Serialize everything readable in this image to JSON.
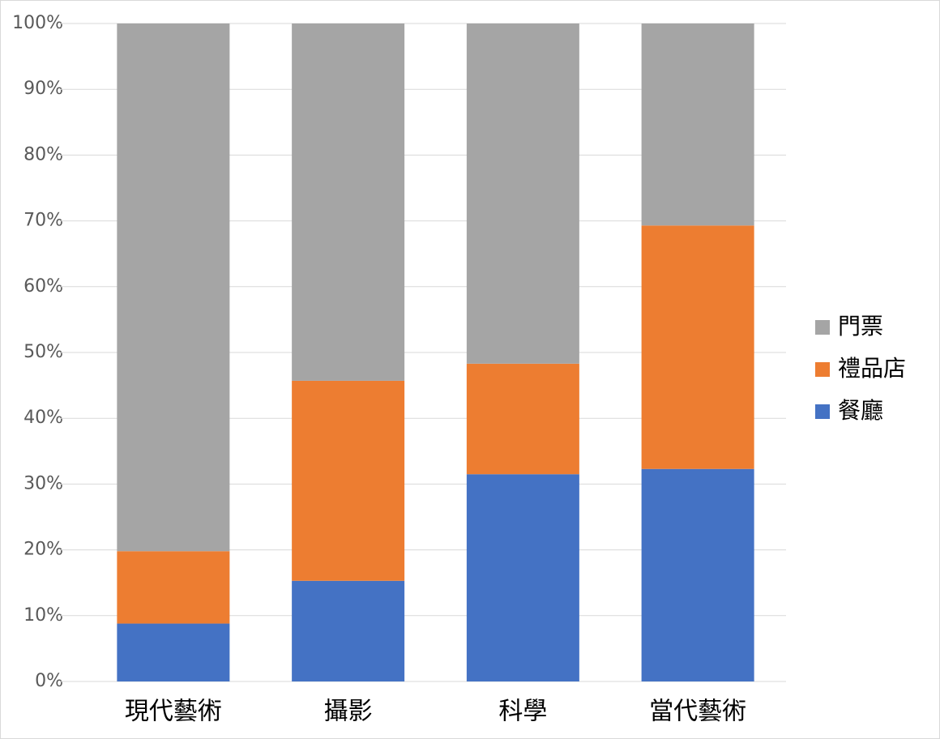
{
  "chart_data": {
    "type": "stacked_bar_100",
    "categories": [
      "現代藝術",
      "攝影",
      "科學",
      "當代藝術"
    ],
    "series": [
      {
        "name": "餐廳",
        "color": "#4472c4",
        "values": [
          8.8,
          15.3,
          31.5,
          32.3
        ]
      },
      {
        "name": "禮品店",
        "color": "#ed7d31",
        "values": [
          11.0,
          30.4,
          16.8,
          37.0
        ]
      },
      {
        "name": "門票",
        "color": "#a5a5a5",
        "values": [
          80.2,
          54.3,
          51.7,
          30.7
        ]
      }
    ],
    "ylim": [
      0,
      100
    ],
    "yticks": [
      {
        "value": 0,
        "label": "0%"
      },
      {
        "value": 10,
        "label": "10%"
      },
      {
        "value": 20,
        "label": "20%"
      },
      {
        "value": 30,
        "label": "30%"
      },
      {
        "value": 40,
        "label": "40%"
      },
      {
        "value": 50,
        "label": "50%"
      },
      {
        "value": 60,
        "label": "60%"
      },
      {
        "value": 70,
        "label": "70%"
      },
      {
        "value": 80,
        "label": "80%"
      },
      {
        "value": 90,
        "label": "90%"
      },
      {
        "value": 100,
        "label": "100%"
      }
    ],
    "grid": true,
    "legend": "right"
  }
}
